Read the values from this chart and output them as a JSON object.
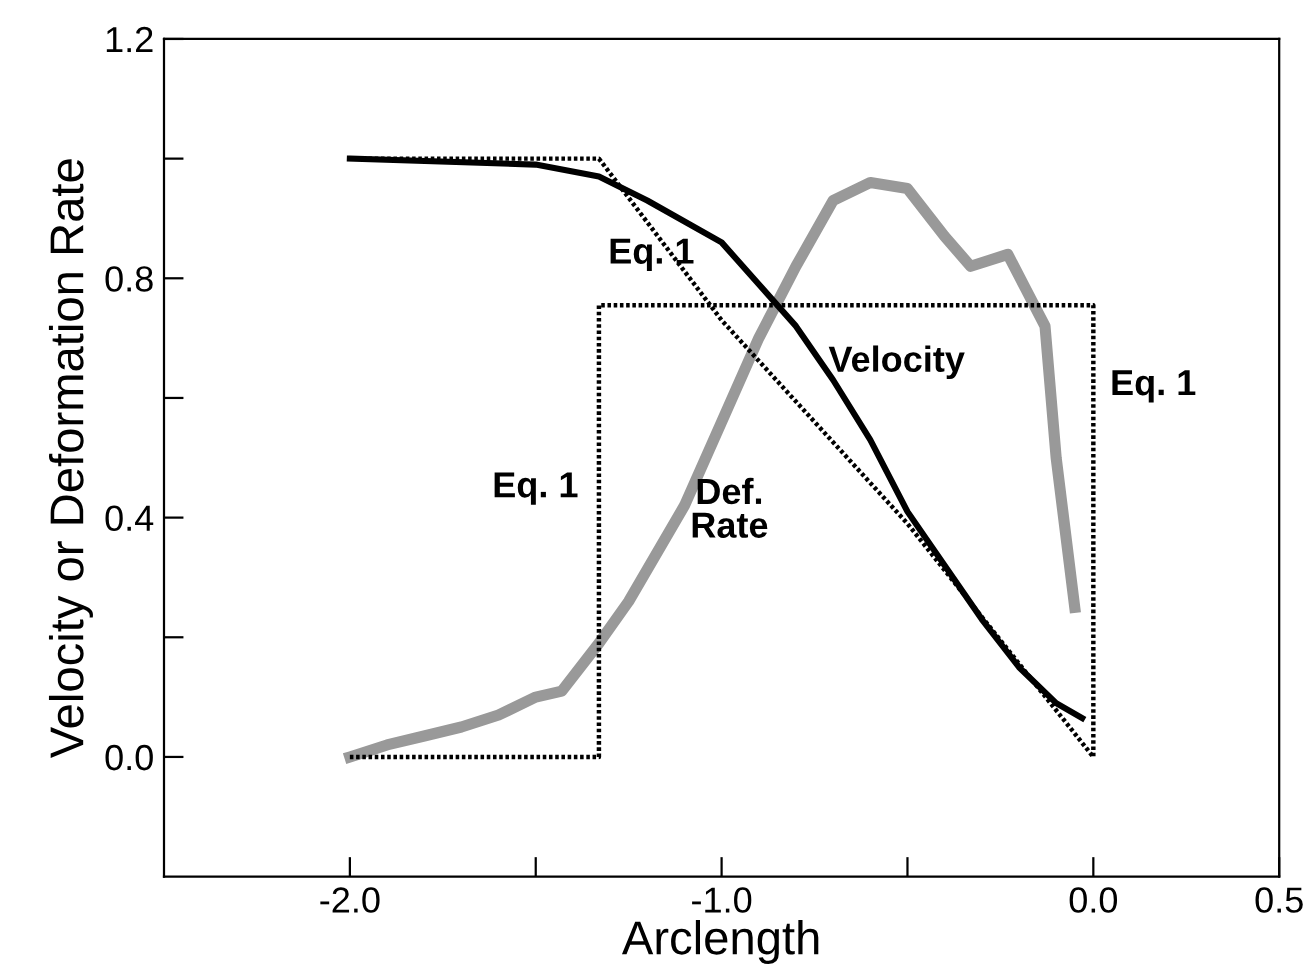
{
  "chart_data": {
    "type": "line",
    "xlabel": "Arclength",
    "ylabel": "Velocity or Deformation Rate",
    "xlim": [
      -2.5,
      0.5
    ],
    "xticks": [
      {
        "value": -2.0,
        "label": "-2.0"
      },
      {
        "value": -1.5,
        "label": null
      },
      {
        "value": -1.0,
        "label": "-1.0"
      },
      {
        "value": -0.5,
        "label": null
      },
      {
        "value": 0.0,
        "label": "0.0"
      },
      0.5
    ],
    "ylim": [
      -0.2,
      1.2
    ],
    "yticks": [
      {
        "value": 0.0,
        "label": "0.0"
      },
      {
        "value": 0.2,
        "label": null
      },
      0.4,
      {
        "value": 0.6,
        "label": null
      },
      0.8,
      {
        "value": 1.0,
        "label": null
      },
      1.2
    ],
    "grid": false,
    "legend": false,
    "marker": "none",
    "series": [
      {
        "color": "#000000",
        "line_style": "dotted",
        "x": [
          -2.0,
          -1.33,
          -1.33,
          0.0,
          0.0
        ],
        "values": [
          0.0,
          0.0,
          0.755,
          0.755,
          0.0
        ]
      },
      {
        "color": "#000000",
        "line_style": "dotted",
        "x": [
          -2.0,
          -1.33,
          -1.0,
          -0.5,
          0.0
        ],
        "values": [
          1.0,
          1.0,
          0.73,
          0.39,
          0.0
        ]
      },
      {
        "color": "#999999",
        "line_style": "solid",
        "x": [
          -2.0,
          -1.9,
          -1.8,
          -1.7,
          -1.6,
          -1.5,
          -1.43,
          -1.33,
          -1.25,
          -1.1,
          -1.0,
          -0.9,
          -0.8,
          -0.7,
          -0.6,
          -0.5,
          -0.4,
          -0.33,
          -0.23,
          -0.18,
          -0.13,
          -0.1,
          -0.05
        ],
        "values": [
          0.0,
          0.02,
          0.035,
          0.05,
          0.07,
          0.1,
          0.11,
          0.19,
          0.26,
          0.42,
          0.56,
          0.7,
          0.82,
          0.93,
          0.96,
          0.95,
          0.87,
          0.82,
          0.84,
          0.78,
          0.72,
          0.5,
          0.25
        ]
      },
      {
        "color": "#000000",
        "line_style": "solid",
        "x": [
          -2.0,
          -1.5,
          -1.33,
          -1.2,
          -1.0,
          -0.9,
          -0.8,
          -0.7,
          -0.6,
          -0.5,
          -0.4,
          -0.3,
          -0.2,
          -0.1,
          -0.03
        ],
        "values": [
          1.0,
          0.99,
          0.97,
          0.93,
          0.86,
          0.79,
          0.72,
          0.63,
          0.53,
          0.41,
          0.32,
          0.23,
          0.15,
          0.09,
          0.065
        ]
      }
    ],
    "annotations": [
      "Eq. 1",
      "Velocity",
      "Eq. 1",
      "Eq. 1",
      "Def.\nRate"
    ]
  }
}
